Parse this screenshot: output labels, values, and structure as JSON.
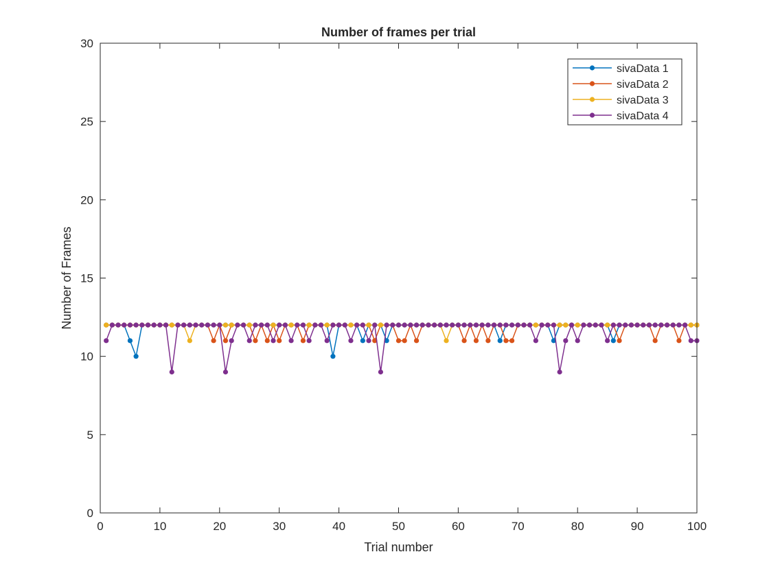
{
  "chart_data": {
    "type": "line",
    "title": "Number of frames per trial",
    "xlabel": "Trial number",
    "ylabel": "Number of Frames",
    "xlim": [
      0,
      100
    ],
    "ylim": [
      0,
      30
    ],
    "xticks": [
      0,
      10,
      20,
      30,
      40,
      50,
      60,
      70,
      80,
      90,
      100
    ],
    "yticks": [
      0,
      5,
      10,
      15,
      20,
      25,
      30
    ],
    "grid": false,
    "legend_position": "top-right",
    "x": [
      1,
      2,
      3,
      4,
      5,
      6,
      7,
      8,
      9,
      10,
      11,
      12,
      13,
      14,
      15,
      16,
      17,
      18,
      19,
      20,
      21,
      22,
      23,
      24,
      25,
      26,
      27,
      28,
      29,
      30,
      31,
      32,
      33,
      34,
      35,
      36,
      37,
      38,
      39,
      40,
      41,
      42,
      43,
      44,
      45,
      46,
      47,
      48,
      49,
      50,
      51,
      52,
      53,
      54,
      55,
      56,
      57,
      58,
      59,
      60,
      61,
      62,
      63,
      64,
      65,
      66,
      67,
      68,
      69,
      70,
      71,
      72,
      73,
      74,
      75,
      76,
      77,
      78,
      79,
      80,
      81,
      82,
      83,
      84,
      85,
      86,
      87,
      88,
      89,
      90,
      91,
      92,
      93,
      94,
      95,
      96,
      97,
      98,
      99,
      100
    ],
    "series": [
      {
        "name": "sivaData 1",
        "color": "#0072BD",
        "values": [
          12,
          12,
          12,
          12,
          11,
          10,
          12,
          12,
          12,
          12,
          12,
          12,
          12,
          12,
          12,
          12,
          12,
          12,
          12,
          12,
          12,
          12,
          12,
          12,
          12,
          12,
          12,
          12,
          12,
          12,
          12,
          12,
          12,
          12,
          12,
          12,
          12,
          12,
          10,
          12,
          12,
          12,
          12,
          11,
          12,
          12,
          12,
          11,
          12,
          12,
          12,
          12,
          12,
          12,
          12,
          12,
          12,
          12,
          12,
          12,
          12,
          12,
          12,
          12,
          12,
          12,
          11,
          12,
          12,
          12,
          12,
          12,
          12,
          12,
          12,
          11,
          12,
          12,
          12,
          12,
          12,
          12,
          12,
          12,
          12,
          11,
          12,
          12,
          12,
          12,
          12,
          12,
          12,
          12,
          12,
          12,
          12,
          12,
          12,
          12
        ]
      },
      {
        "name": "sivaData 2",
        "color": "#D95319",
        "values": [
          12,
          12,
          12,
          12,
          12,
          12,
          12,
          12,
          12,
          12,
          12,
          12,
          12,
          12,
          12,
          12,
          12,
          12,
          11,
          12,
          11,
          12,
          12,
          12,
          12,
          11,
          12,
          11,
          12,
          11,
          12,
          12,
          12,
          11,
          12,
          12,
          12,
          12,
          12,
          12,
          12,
          12,
          12,
          12,
          12,
          11,
          12,
          12,
          12,
          11,
          11,
          12,
          11,
          12,
          12,
          12,
          12,
          12,
          12,
          12,
          11,
          12,
          11,
          12,
          11,
          12,
          12,
          11,
          11,
          12,
          12,
          12,
          12,
          12,
          12,
          12,
          12,
          12,
          12,
          12,
          12,
          12,
          12,
          12,
          12,
          12,
          11,
          12,
          12,
          12,
          12,
          12,
          11,
          12,
          12,
          12,
          11,
          12,
          12,
          12
        ]
      },
      {
        "name": "sivaData 3",
        "color": "#EDB120",
        "values": [
          12,
          12,
          12,
          12,
          12,
          12,
          12,
          12,
          12,
          12,
          12,
          12,
          12,
          12,
          11,
          12,
          12,
          12,
          12,
          12,
          12,
          12,
          12,
          12,
          12,
          12,
          12,
          12,
          12,
          12,
          12,
          12,
          12,
          12,
          12,
          12,
          12,
          12,
          12,
          12,
          12,
          12,
          12,
          12,
          12,
          12,
          12,
          12,
          12,
          12,
          12,
          12,
          12,
          12,
          12,
          12,
          12,
          11,
          12,
          12,
          12,
          12,
          12,
          12,
          12,
          12,
          12,
          12,
          12,
          12,
          12,
          12,
          12,
          12,
          12,
          12,
          12,
          12,
          12,
          12,
          12,
          12,
          12,
          12,
          12,
          12,
          12,
          12,
          12,
          12,
          12,
          12,
          12,
          12,
          12,
          12,
          12,
          12,
          12,
          12
        ]
      },
      {
        "name": "sivaData 4",
        "color": "#7E2F8E",
        "values": [
          11,
          12,
          12,
          12,
          12,
          12,
          12,
          12,
          12,
          12,
          12,
          9,
          12,
          12,
          12,
          12,
          12,
          12,
          12,
          12,
          9,
          11,
          12,
          12,
          11,
          12,
          12,
          12,
          11,
          12,
          12,
          11,
          12,
          12,
          11,
          12,
          12,
          11,
          12,
          12,
          12,
          11,
          12,
          12,
          11,
          12,
          9,
          12,
          12,
          12,
          12,
          12,
          12,
          12,
          12,
          12,
          12,
          12,
          12,
          12,
          12,
          12,
          12,
          12,
          12,
          12,
          12,
          12,
          12,
          12,
          12,
          12,
          11,
          12,
          12,
          12,
          9,
          11,
          12,
          11,
          12,
          12,
          12,
          12,
          11,
          12,
          12,
          12,
          12,
          12,
          12,
          12,
          12,
          12,
          12,
          12,
          12,
          12,
          11,
          11
        ]
      }
    ]
  }
}
